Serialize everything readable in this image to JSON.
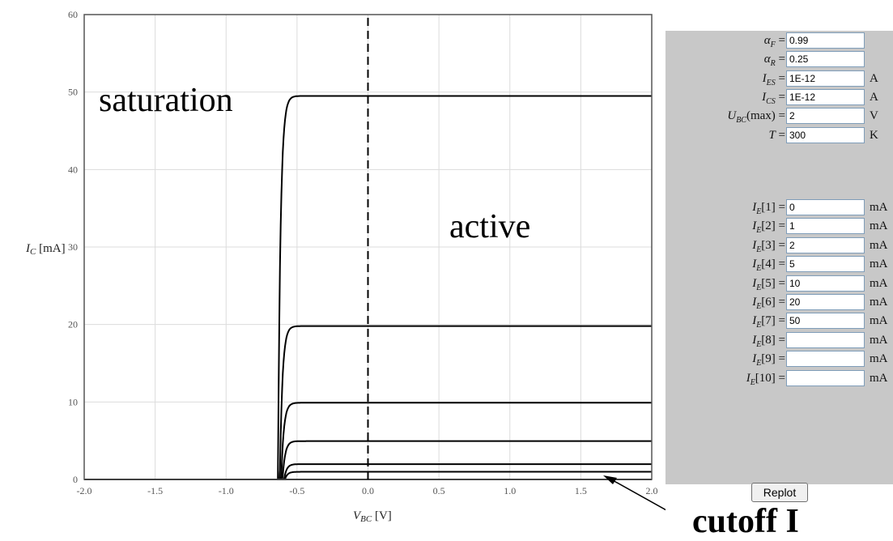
{
  "chart_data": {
    "type": "line",
    "xlabel_var": "V",
    "xlabel_sub": "BC",
    "xlabel_unit": " [V]",
    "ylabel_var": "I",
    "ylabel_sub": "C",
    "ylabel_unit": " [mA]",
    "xlim": [
      -2.0,
      2.0
    ],
    "ylim": [
      0,
      60
    ],
    "x_ticks": [
      -2.0,
      -1.5,
      -1.0,
      -0.5,
      0.0,
      0.5,
      1.0,
      1.5,
      2.0
    ],
    "x_tick_labels": [
      "-2.0",
      "-1.5",
      "-1.0",
      "-0.5",
      "0.0",
      "0.5",
      "1.0",
      "1.5",
      "2.0"
    ],
    "y_ticks": [
      0,
      10,
      20,
      30,
      40,
      50,
      60
    ],
    "y_tick_labels": [
      "0",
      "10",
      "20",
      "30",
      "40",
      "50",
      "60"
    ],
    "grid": true,
    "dashed_line_x": 0.0,
    "series": [
      {
        "ie": 0
      },
      {
        "ie": 1
      },
      {
        "ie": 2
      },
      {
        "ie": 5
      },
      {
        "ie": 10
      },
      {
        "ie": 20
      },
      {
        "ie": 50
      }
    ],
    "alpha_f": 0.99,
    "region_saturation": "saturation",
    "region_active": "active"
  },
  "panel": {
    "fields": [
      {
        "name": "alpha-f-input",
        "var": "α",
        "sub": "F",
        "suffix": " =",
        "value": "0.99",
        "unit": ""
      },
      {
        "name": "alpha-r-input",
        "var": "α",
        "sub": "R",
        "suffix": " =",
        "value": "0.25",
        "unit": ""
      },
      {
        "name": "ies-input",
        "var": "I",
        "sub": "ES",
        "suffix": " =",
        "value": "1E-12",
        "unit": "A"
      },
      {
        "name": "ics-input",
        "var": "I",
        "sub": "CS",
        "suffix": " =",
        "value": "1E-12",
        "unit": "A"
      },
      {
        "name": "ubc-max-input",
        "var": "U",
        "sub": "BC",
        "suffix": "(max) =",
        "value": "2",
        "unit": "V"
      },
      {
        "name": "temperature-input",
        "var": "T",
        "sub": "",
        "suffix": " =",
        "value": "300",
        "unit": "K"
      }
    ],
    "ie_fields": [
      {
        "label": "[1] =",
        "value": "0",
        "unit": "mA"
      },
      {
        "label": "[2] =",
        "value": "1",
        "unit": "mA"
      },
      {
        "label": "[3] =",
        "value": "2",
        "unit": "mA"
      },
      {
        "label": "[4] =",
        "value": "5",
        "unit": "mA"
      },
      {
        "label": "[5] =",
        "value": "10",
        "unit": "mA"
      },
      {
        "label": "[6] =",
        "value": "20",
        "unit": "mA"
      },
      {
        "label": "[7] =",
        "value": "50",
        "unit": "mA"
      },
      {
        "label": "[8] =",
        "value": "",
        "unit": "mA"
      },
      {
        "label": "[9] =",
        "value": "",
        "unit": "mA"
      },
      {
        "label": "[10] =",
        "value": "",
        "unit": "mA"
      }
    ],
    "ie_var": "I",
    "ie_sub": "E",
    "replot_label": "Replot"
  },
  "bottom_label": "cutoff I"
}
